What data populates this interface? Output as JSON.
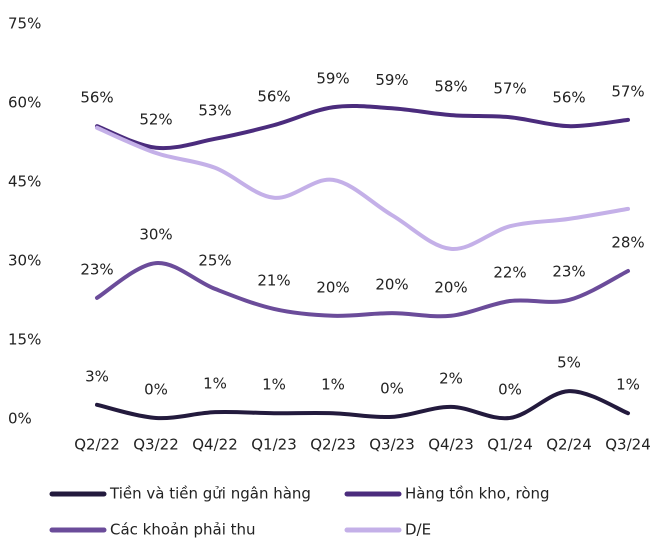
{
  "chart_data": {
    "type": "line",
    "categories": [
      "Q2/22",
      "Q3/22",
      "Q4/22",
      "Q1/23",
      "Q2/23",
      "Q3/23",
      "Q4/23",
      "Q1/24",
      "Q2/24",
      "Q3/24"
    ],
    "ylim": [
      0,
      75
    ],
    "yticks": [
      {
        "value": 0,
        "label": "0%"
      },
      {
        "value": 15,
        "label": "15%"
      },
      {
        "value": 30,
        "label": "30%"
      },
      {
        "value": 45,
        "label": "45%"
      },
      {
        "value": 60,
        "label": "60%"
      },
      {
        "value": 75,
        "label": "75%"
      }
    ],
    "series": [
      {
        "name": "Tiền và tiền gửi ngân hàng",
        "color": "#231a3d",
        "values": [
          2.7,
          0.2,
          1.3,
          1.1,
          1.1,
          0.4,
          2.3,
          0.2,
          5.3,
          1.1
        ],
        "value_labels": [
          "3%",
          "0%",
          "1%",
          "1%",
          "1%",
          "0%",
          "2%",
          "0%",
          "5%",
          "1%"
        ]
      },
      {
        "name": "Hàng tồn kho, ròng",
        "color": "#4b2c7d",
        "values": [
          55.6,
          51.5,
          53.2,
          55.8,
          59.2,
          59.0,
          57.7,
          57.3,
          55.6,
          56.8
        ],
        "value_labels": [
          "56%",
          "52%",
          "53%",
          "56%",
          "59%",
          "59%",
          "58%",
          "57%",
          "56%",
          "57%"
        ]
      },
      {
        "name": "Các khoản phải thu",
        "color": "#6b4c9a",
        "values": [
          23.0,
          29.6,
          24.7,
          20.9,
          19.6,
          20.1,
          19.6,
          22.4,
          22.6,
          28.1
        ],
        "value_labels": [
          "23%",
          "30%",
          "25%",
          "21%",
          "20%",
          "20%",
          "20%",
          "22%",
          "23%",
          "28%"
        ]
      },
      {
        "name": "D/E",
        "color": "#c4b0e8",
        "values": [
          55.3,
          50.5,
          47.7,
          42.0,
          45.4,
          38.7,
          32.3,
          36.6,
          38.0,
          39.9
        ]
      }
    ]
  }
}
